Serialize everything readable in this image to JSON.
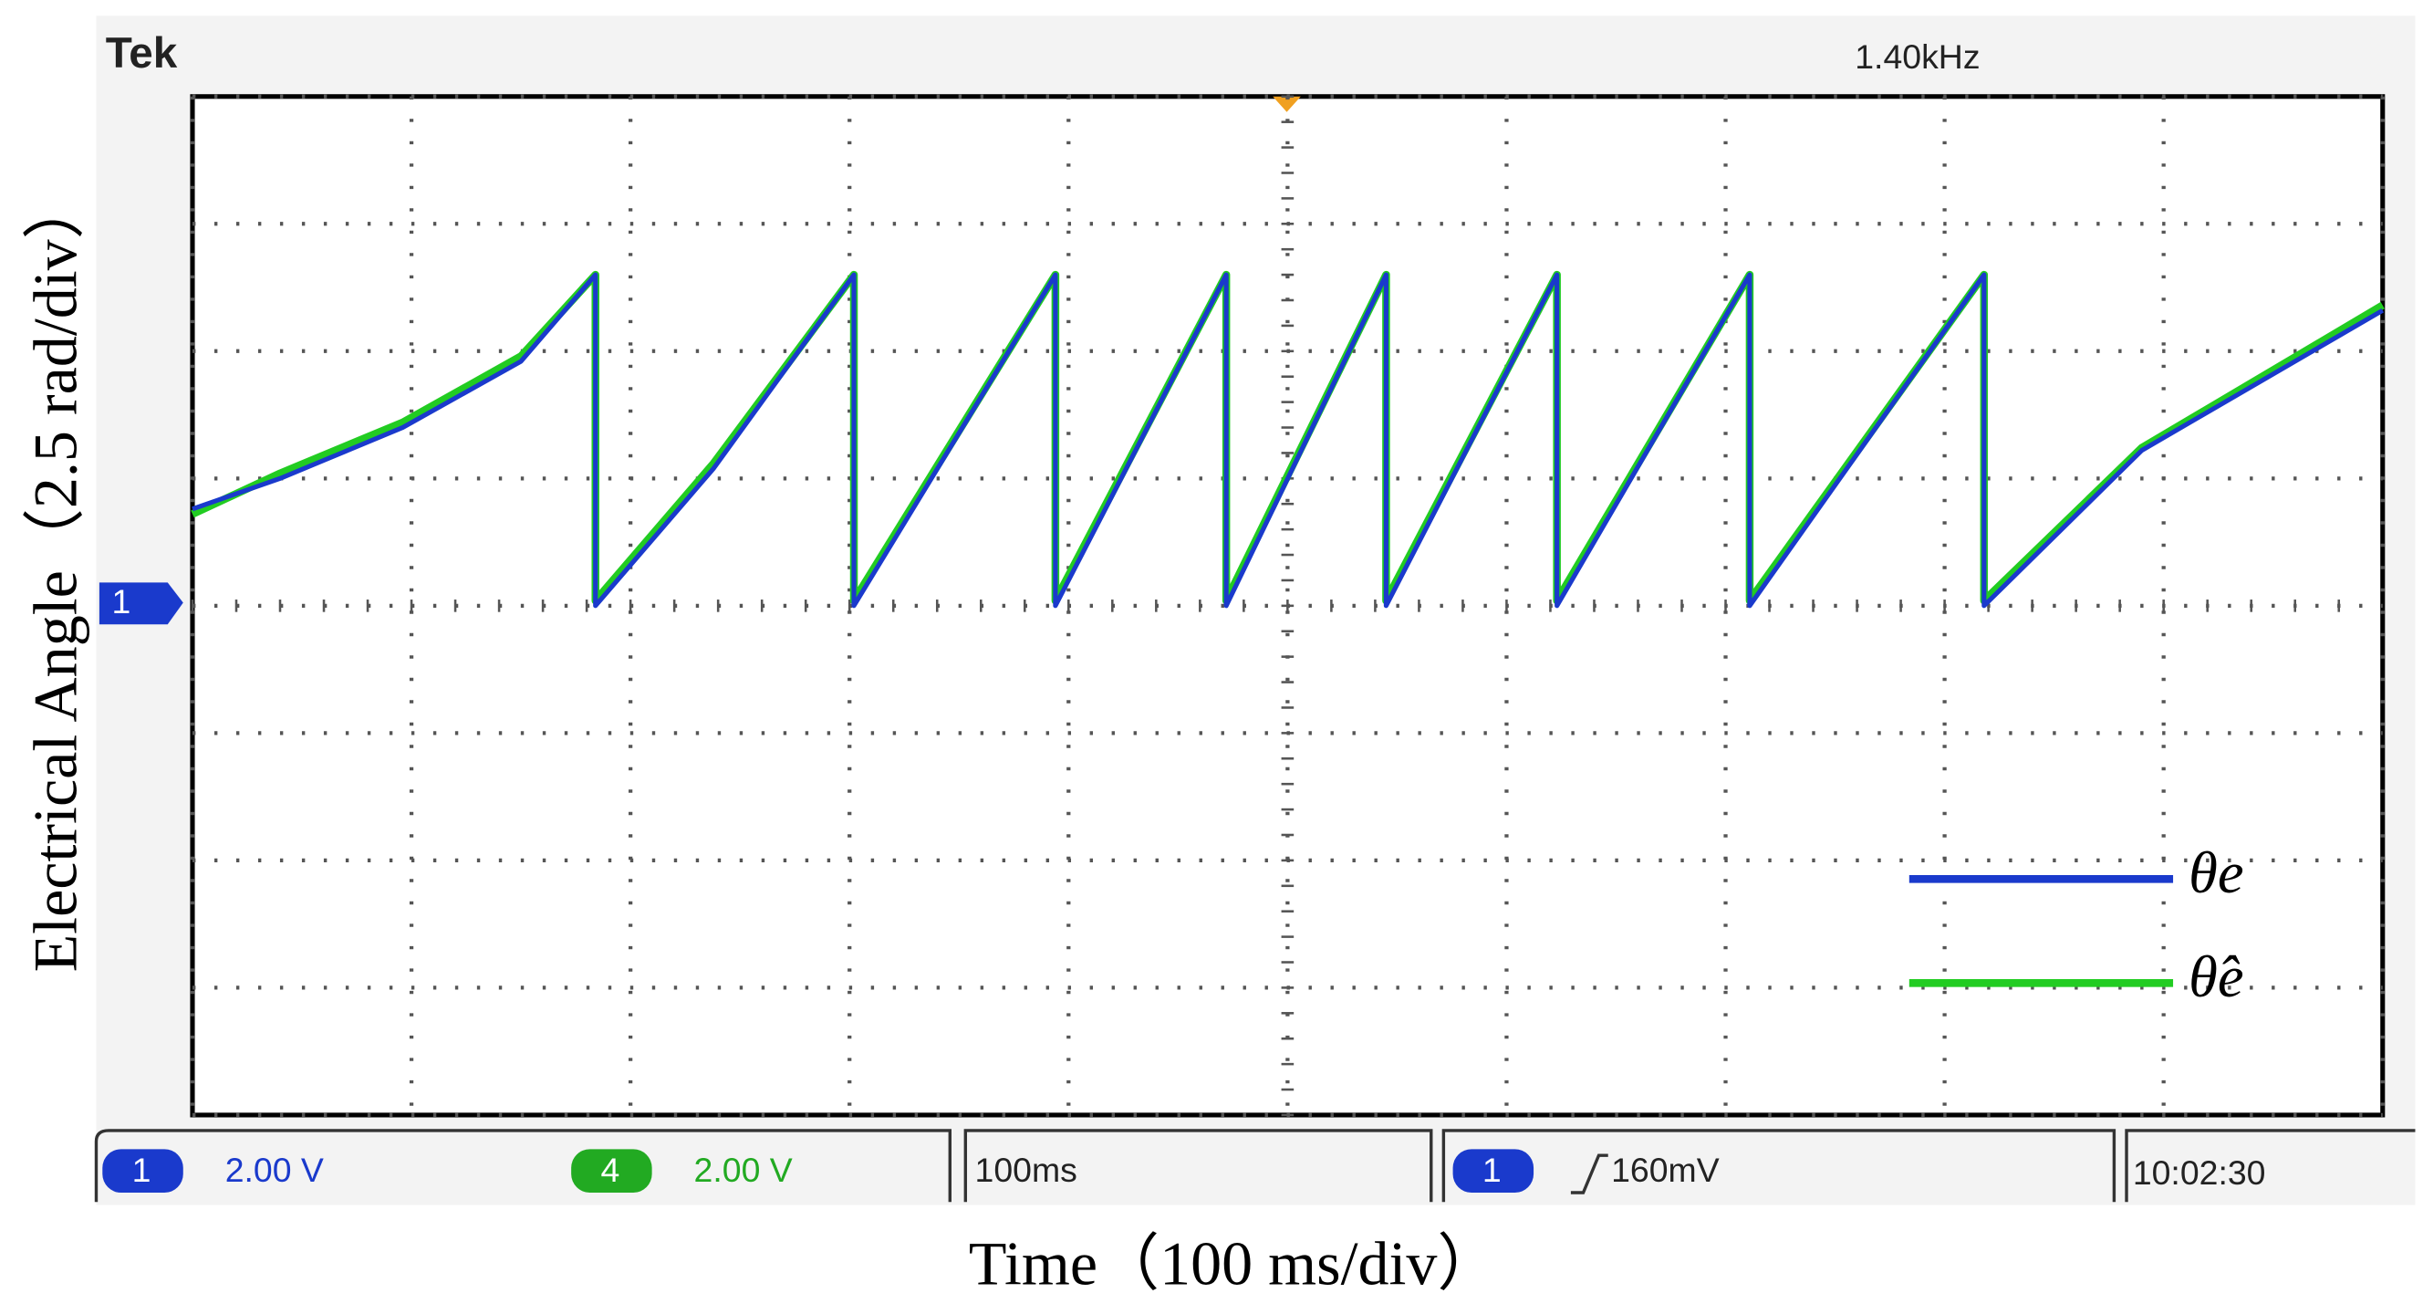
{
  "chart_data": {
    "type": "line",
    "x_label": "Time（100 ms/div）",
    "y_label": "Electrical Angle（2.5 rad/div）",
    "x": [
      0,
      40,
      96,
      150,
      184,
      184,
      238,
      302,
      302,
      394,
      394,
      472,
      472,
      545,
      545,
      623,
      623,
      711,
      711,
      818,
      818,
      890,
      1000
    ],
    "series": [
      {
        "name": "θ̂e",
        "color": "#22cc22",
        "values": [
          1.8,
          2.6,
          3.6,
          4.9,
          6.5,
          0.1,
          2.8,
          6.5,
          0.1,
          6.5,
          0.1,
          6.5,
          0.1,
          6.5,
          0.1,
          6.5,
          0.1,
          6.5,
          0.1,
          6.5,
          0.1,
          3.1,
          5.9
        ]
      },
      {
        "name": "θe",
        "color": "#1a3acc",
        "values": [
          1.9,
          2.5,
          3.5,
          4.8,
          6.5,
          0,
          2.7,
          6.5,
          0,
          6.5,
          0,
          6.5,
          0,
          6.5,
          0,
          6.5,
          0,
          6.5,
          0,
          6.5,
          0,
          3.05,
          5.8
        ]
      }
    ],
    "xlim": [
      0,
      1000
    ],
    "xticks": [
      0,
      100,
      200,
      300,
      400,
      500,
      600,
      700,
      800,
      900,
      1000
    ],
    "ylim": [
      -10,
      10
    ],
    "yticks": [
      -10,
      -7.5,
      -5,
      -2.5,
      0,
      2.5,
      5,
      7.5,
      10
    ],
    "grid": true,
    "annotations": [
      "Tek",
      "1.40kHz",
      "1",
      "1",
      "2.00 V",
      "4",
      "2.00 V",
      "100ms",
      "1",
      "160mV",
      "10:02:30"
    ]
  }
}
